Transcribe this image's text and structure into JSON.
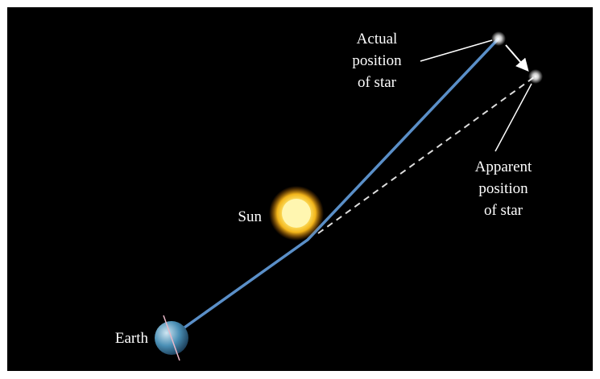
{
  "labels": {
    "actual_star": [
      "Actual",
      "position",
      "of star"
    ],
    "apparent_star": [
      "Apparent",
      "position",
      "of star"
    ],
    "sun": "Sun",
    "earth": "Earth"
  }
}
